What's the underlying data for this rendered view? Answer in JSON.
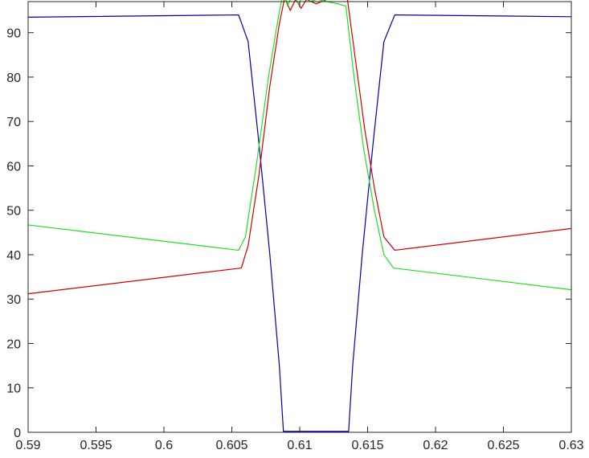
{
  "chart_data": {
    "type": "line",
    "title": "",
    "xlabel": "",
    "ylabel": "",
    "xlim": [
      0.59,
      0.63
    ],
    "ylim": [
      0,
      97
    ],
    "grid": false,
    "legend": "none",
    "x_ticks": [
      "0.59",
      "0.595",
      "0.6",
      "0.605",
      "0.61",
      "0.615",
      "0.62",
      "0.625",
      "0.63"
    ],
    "x_tick_values": [
      0.59,
      0.595,
      0.6,
      0.605,
      0.61,
      0.615,
      0.62,
      0.625,
      0.63
    ],
    "y_ticks": [
      "0",
      "10",
      "20",
      "30",
      "40",
      "50",
      "60",
      "70",
      "80",
      "90"
    ],
    "y_tick_values": [
      0,
      10,
      20,
      30,
      40,
      50,
      60,
      70,
      80,
      90
    ],
    "series": [
      {
        "color": "#0000aa",
        "x": [
          0.59,
          0.6055,
          0.6062,
          0.607,
          0.6078,
          0.6085,
          0.6088,
          0.6136,
          0.6139,
          0.6146,
          0.6154,
          0.6162,
          0.617,
          0.63
        ],
        "y": [
          93.5,
          94.0,
          88.0,
          65.0,
          40.0,
          15.0,
          0.2,
          0.2,
          15.0,
          40.0,
          65.0,
          88.0,
          94.0,
          93.6
        ]
      },
      {
        "color": "#cc0000",
        "x": [
          0.59,
          0.6057,
          0.6062,
          0.607,
          0.6078,
          0.6085,
          0.6089,
          0.6093,
          0.6097,
          0.6101,
          0.6105,
          0.6112,
          0.612,
          0.6128,
          0.6132,
          0.6135,
          0.6141,
          0.6148,
          0.6155,
          0.6162,
          0.617,
          0.63
        ],
        "y": [
          31.2,
          37.0,
          42.0,
          58.0,
          78.0,
          92.0,
          98.0,
          95.0,
          97.5,
          95.5,
          97.5,
          96.5,
          97.5,
          97.5,
          98.0,
          97.8,
          84.0,
          68.0,
          55.0,
          44.0,
          41.0,
          45.9
        ]
      },
      {
        "color": "#22dd22",
        "x": [
          0.59,
          0.6055,
          0.606,
          0.6068,
          0.6077,
          0.6084,
          0.6088,
          0.6091,
          0.6095,
          0.6099,
          0.6103,
          0.6107,
          0.6113,
          0.612,
          0.6128,
          0.6134,
          0.614,
          0.6147,
          0.6155,
          0.6162,
          0.6169,
          0.63
        ],
        "y": [
          46.7,
          41.0,
          44.0,
          60.0,
          80.0,
          93.0,
          99.5,
          96.0,
          99.0,
          96.5,
          98.5,
          97.0,
          97.5,
          97.0,
          96.5,
          96.0,
          80.0,
          64.0,
          50.0,
          40.0,
          37.0,
          32.1
        ]
      }
    ]
  }
}
